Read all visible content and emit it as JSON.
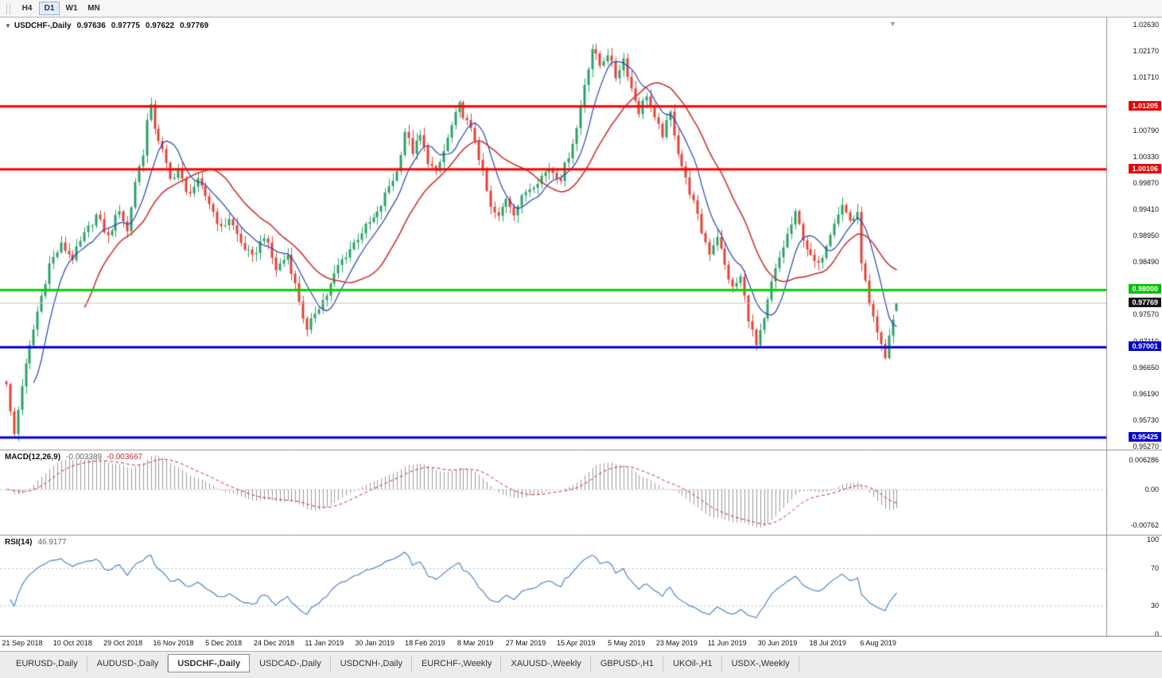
{
  "toolbar": {
    "timeframes": [
      {
        "label": "H4",
        "active": false
      },
      {
        "label": "D1",
        "active": true
      },
      {
        "label": "W1",
        "active": false
      },
      {
        "label": "MN",
        "active": false
      }
    ]
  },
  "chart_header": {
    "symbol": "USDCHF-,Daily",
    "open": "0.97636",
    "high": "0.97775",
    "low": "0.97622",
    "close": "0.97769",
    "collapse_icon": "one-click-trading-arrow"
  },
  "price_axis": {
    "labels": [
      "1.02630",
      "1.02170",
      "1.01710",
      "1.00790",
      "1.00330",
      "0.99870",
      "0.99410",
      "0.98950",
      "0.98490",
      "0.97570",
      "0.97110",
      "0.96650",
      "0.96190",
      "0.95730",
      "0.95270"
    ],
    "badges": [
      {
        "text": "1.01205",
        "color": "#e60000",
        "text_color": "#ffffff"
      },
      {
        "text": "1.00106",
        "color": "#e60000",
        "text_color": "#ffffff"
      },
      {
        "text": "0.98000",
        "color": "#00c000",
        "text_color": "#ffffff"
      },
      {
        "text": "0.97769",
        "color": "#151515",
        "text_color": "#ffffff"
      },
      {
        "text": "0.97001",
        "color": "#0000cc",
        "text_color": "#ffffff"
      },
      {
        "text": "0.95425",
        "color": "#0000cc",
        "text_color": "#ffffff"
      }
    ]
  },
  "macd_pane": {
    "label": "MACD(12,26,9)",
    "value1": "-0.003389",
    "value2": "-0.003667",
    "axis_labels": [
      "0.006286",
      "0.00",
      "-0.00762"
    ]
  },
  "rsi_pane": {
    "label": "RSI(14)",
    "value": "46.9177",
    "axis_labels": [
      "100",
      "70",
      "30",
      "0"
    ]
  },
  "date_axis": {
    "labels": [
      "21 Sep 2018",
      "10 Oct 2018",
      "29 Oct 2018",
      "16 Nov 2018",
      "5 Dec 2018",
      "24 Dec 2018",
      "11 Jan 2019",
      "30 Jan 2019",
      "18 Feb 2019",
      "8 Mar 2019",
      "27 Mar 2019",
      "15 Apr 2019",
      "5 May 2019",
      "23 May 2019",
      "11 Jun 2019",
      "30 Jun 2019",
      "18 Jul 2019",
      "6 Aug 2019"
    ]
  },
  "tabs": [
    {
      "label": "EURUSD-,Daily",
      "active": false
    },
    {
      "label": "AUDUSD-,Daily",
      "active": false
    },
    {
      "label": "USDCHF-,Daily",
      "active": true
    },
    {
      "label": "USDCAD-,Daily",
      "active": false
    },
    {
      "label": "USDCNH-,Daily",
      "active": false
    },
    {
      "label": "EURCHF-,Weekly",
      "active": false
    },
    {
      "label": "XAUUSD-,Weekly",
      "active": false
    },
    {
      "label": "GBPUSD-,H1",
      "active": false
    },
    {
      "label": "UKOil-,H1",
      "active": false
    },
    {
      "label": "USDX-,Weekly",
      "active": false
    }
  ],
  "chart_data": {
    "type": "candlestick",
    "symbol": "USDCHF",
    "timeframe": "Daily",
    "visible_range": {
      "start": "21 Sep 2018",
      "end": "6 Aug 2019"
    },
    "price_scale": {
      "min": 0.9527,
      "max": 1.0263,
      "gridline_step": 0.0046
    },
    "visible_high": 1.02269,
    "visible_low": 0.9528,
    "current_price": 0.97769,
    "last_candle": {
      "open": 0.97636,
      "high": 0.97775,
      "low": 0.97622,
      "close": 0.97769
    },
    "candle_count": 229,
    "hlines": [
      {
        "price": 1.01205,
        "color": "#ff0000",
        "role": "resistance"
      },
      {
        "price": 1.00106,
        "color": "#ff0000",
        "role": "resistance"
      },
      {
        "price": 0.98,
        "color": "#00d800",
        "role": "support-broken"
      },
      {
        "price": 0.97001,
        "color": "#0000e0",
        "role": "support"
      },
      {
        "price": 0.95425,
        "color": "#0000e0",
        "role": "support"
      }
    ],
    "price_path_anchors": [
      [
        0,
        0.964
      ],
      [
        1,
        0.9585
      ],
      [
        2,
        0.9548
      ],
      [
        4,
        0.9635
      ],
      [
        6,
        0.97
      ],
      [
        8,
        0.9762
      ],
      [
        11,
        0.9845
      ],
      [
        14,
        0.9878
      ],
      [
        17,
        0.9856
      ],
      [
        20,
        0.9896
      ],
      [
        23,
        0.993
      ],
      [
        26,
        0.9892
      ],
      [
        29,
        0.9942
      ],
      [
        31,
        0.9902
      ],
      [
        33,
        0.999
      ],
      [
        35,
        1.004
      ],
      [
        36,
        1.0095
      ],
      [
        37,
        1.0118
      ],
      [
        38,
        1.0085
      ],
      [
        40,
        1.0042
      ],
      [
        42,
        0.9992
      ],
      [
        44,
        1.0012
      ],
      [
        46,
        0.9968
      ],
      [
        49,
        0.9988
      ],
      [
        52,
        0.9952
      ],
      [
        55,
        0.9906
      ],
      [
        57,
        0.9926
      ],
      [
        60,
        0.9882
      ],
      [
        63,
        0.9856
      ],
      [
        66,
        0.9896
      ],
      [
        69,
        0.9836
      ],
      [
        72,
        0.9862
      ],
      [
        75,
        0.9782
      ],
      [
        77,
        0.9726
      ],
      [
        79,
        0.9762
      ],
      [
        82,
        0.9792
      ],
      [
        85,
        0.9842
      ],
      [
        88,
        0.9872
      ],
      [
        91,
        0.9902
      ],
      [
        95,
        0.9932
      ],
      [
        98,
        0.9982
      ],
      [
        100,
        1.0006
      ],
      [
        102,
        1.0078
      ],
      [
        104,
        1.0042
      ],
      [
        106,
        1.0068
      ],
      [
        108,
        1.0026
      ],
      [
        110,
        1.0002
      ],
      [
        112,
        1.0042
      ],
      [
        114,
        1.0086
      ],
      [
        116,
        1.0122
      ],
      [
        118,
        1.0092
      ],
      [
        120,
        1.0062
      ],
      [
        122,
        1.0002
      ],
      [
        124,
        0.9942
      ],
      [
        126,
        0.9926
      ],
      [
        128,
        0.9962
      ],
      [
        130,
        0.9936
      ],
      [
        133,
        0.9972
      ],
      [
        136,
        0.9992
      ],
      [
        139,
        1.0012
      ],
      [
        142,
        0.9996
      ],
      [
        144,
        1.0036
      ],
      [
        146,
        1.0082
      ],
      [
        148,
        1.016
      ],
      [
        150,
        1.0222
      ],
      [
        152,
        1.0192
      ],
      [
        154,
        1.0214
      ],
      [
        156,
        1.0172
      ],
      [
        158,
        1.0204
      ],
      [
        160,
        1.0152
      ],
      [
        162,
        1.0112
      ],
      [
        164,
        1.0142
      ],
      [
        166,
        1.0096
      ],
      [
        168,
        1.0072
      ],
      [
        170,
        1.0108
      ],
      [
        172,
        1.0042
      ],
      [
        174,
        0.9992
      ],
      [
        176,
        0.9952
      ],
      [
        178,
        0.9902
      ],
      [
        180,
        0.9866
      ],
      [
        182,
        0.9896
      ],
      [
        184,
        0.9842
      ],
      [
        186,
        0.9802
      ],
      [
        188,
        0.9822
      ],
      [
        190,
        0.9752
      ],
      [
        192,
        0.9702
      ],
      [
        194,
        0.9746
      ],
      [
        196,
        0.9812
      ],
      [
        198,
        0.9856
      ],
      [
        200,
        0.9896
      ],
      [
        202,
        0.9932
      ],
      [
        204,
        0.9892
      ],
      [
        206,
        0.9856
      ],
      [
        208,
        0.9842
      ],
      [
        210,
        0.9882
      ],
      [
        212,
        0.9922
      ],
      [
        214,
        0.9948
      ],
      [
        216,
        0.9922
      ],
      [
        218,
        0.993
      ],
      [
        219,
        0.9852
      ],
      [
        221,
        0.9772
      ],
      [
        223,
        0.9722
      ],
      [
        225,
        0.968
      ],
      [
        226,
        0.9722
      ],
      [
        227,
        0.9748
      ],
      [
        228,
        0.97769
      ]
    ],
    "ma_periods": {
      "fast": 8,
      "slow": 21
    },
    "indicators": [
      {
        "name": "MACD",
        "params": [
          12,
          26,
          9
        ],
        "current": [
          -0.003389,
          -0.003667
        ],
        "axis": {
          "max": 0.006286,
          "min": -0.00762
        }
      },
      {
        "name": "RSI",
        "params": [
          14
        ],
        "current": 46.9177,
        "levels": [
          70,
          30
        ],
        "axis": [
          100,
          70,
          30,
          0
        ]
      }
    ],
    "colors": {
      "up": "#2aa169",
      "down": "#e04338",
      "ma_fast": "#2440b3",
      "ma_slow": "#cc3333",
      "macd_hist": "#9a9a9a",
      "macd_signal": "#c03030",
      "rsi": "#3e7bbf",
      "current_price_line": "#c0c0c0"
    }
  }
}
